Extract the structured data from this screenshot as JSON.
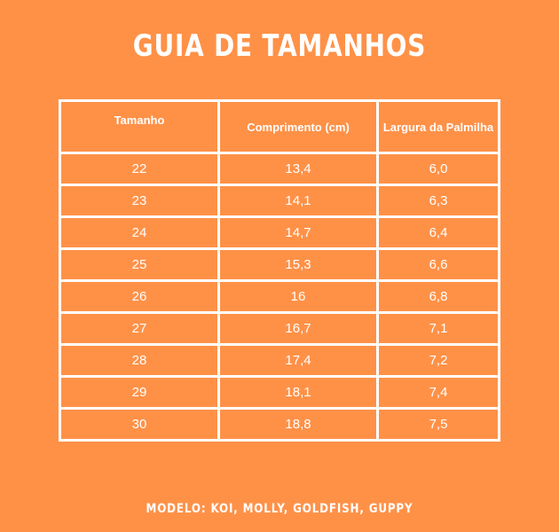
{
  "title": "GUIA DE TAMANHOS",
  "table": {
    "headers": {
      "size": "Tamanho",
      "length": "Comprimento (cm)",
      "width": "Largura da Palmilha"
    },
    "rows": [
      {
        "size": "22",
        "length": "13,4",
        "width": "6,0"
      },
      {
        "size": "23",
        "length": "14,1",
        "width": "6,3"
      },
      {
        "size": "24",
        "length": "14,7",
        "width": "6,4"
      },
      {
        "size": "25",
        "length": "15,3",
        "width": "6,6"
      },
      {
        "size": "26",
        "length": "16",
        "width": "6,8"
      },
      {
        "size": "27",
        "length": "16,7",
        "width": "7,1"
      },
      {
        "size": "28",
        "length": "17,4",
        "width": "7,2"
      },
      {
        "size": "29",
        "length": "18,1",
        "width": "7,4"
      },
      {
        "size": "30",
        "length": "18,8",
        "width": "7,5"
      }
    ]
  },
  "footer": "MODELO: KOI, MOLLY, GOLDFISH, GUPPY",
  "colors": {
    "background": "#FF9147",
    "foreground": "#FFFFFF"
  }
}
